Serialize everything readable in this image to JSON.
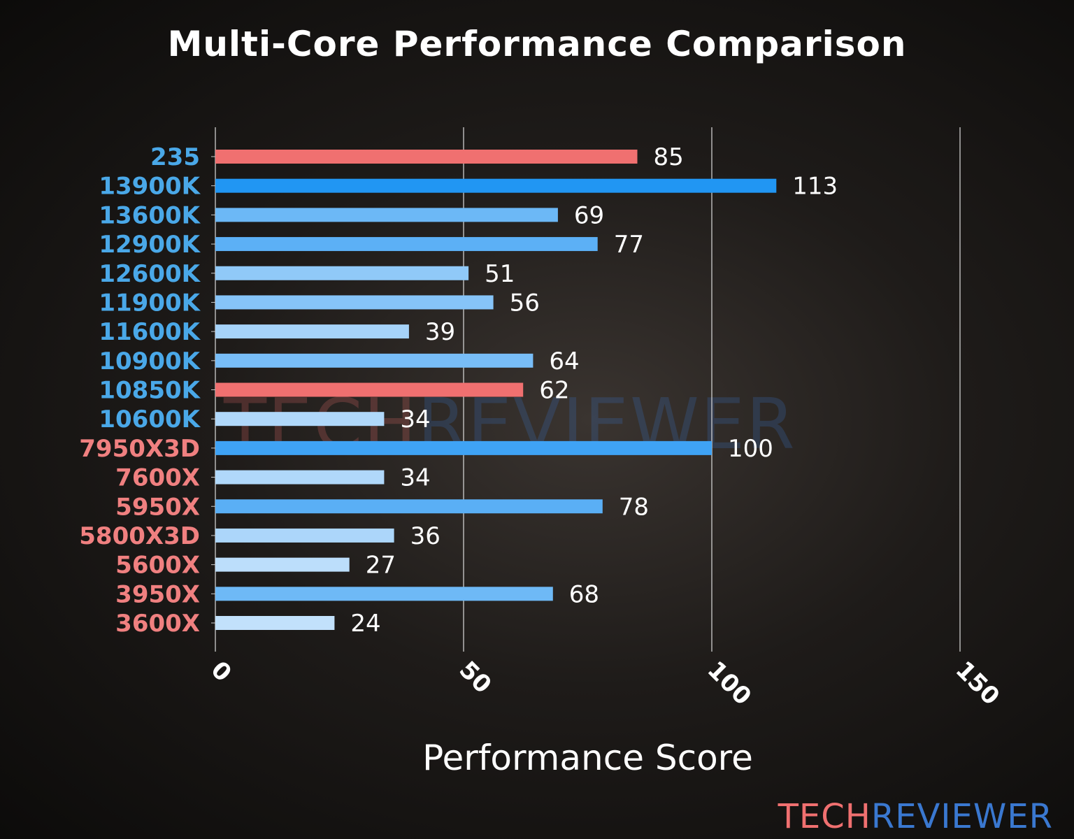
{
  "chart_data": {
    "type": "bar",
    "orientation": "horizontal",
    "title": "Multi-Core Performance Comparison",
    "xlabel": "Performance Score",
    "ylabel": "",
    "xlim": [
      0,
      150
    ],
    "xticks": [
      0,
      50,
      100,
      150
    ],
    "grid": "vertical",
    "categories": [
      "235",
      "13900K",
      "13600K",
      "12900K",
      "12600K",
      "11900K",
      "11600K",
      "10900K",
      "10850K",
      "10600K",
      "7950X3D",
      "7600X",
      "5950X",
      "5800X3D",
      "5600X",
      "3950X",
      "3600X"
    ],
    "values": [
      85,
      113,
      69,
      77,
      51,
      56,
      39,
      64,
      62,
      34,
      100,
      34,
      78,
      36,
      27,
      68,
      24
    ],
    "bar_colors": [
      "#f07070",
      "#2196f3",
      "#6cb8f6",
      "#5cb0f6",
      "#90c9f8",
      "#86c4f8",
      "#a6d3f9",
      "#78bdf7",
      "#f07070",
      "#b0d8fa",
      "#3fa3f5",
      "#b0d8fa",
      "#5aaff5",
      "#acd6fa",
      "#bcdefb",
      "#6eb9f6",
      "#c2e1fb"
    ],
    "label_colors": [
      "#4aa8e8",
      "#4aa8e8",
      "#4aa8e8",
      "#4aa8e8",
      "#4aa8e8",
      "#4aa8e8",
      "#4aa8e8",
      "#4aa8e8",
      "#4aa8e8",
      "#4aa8e8",
      "#f08080",
      "#f08080",
      "#f08080",
      "#f08080",
      "#f08080",
      "#f08080",
      "#f08080"
    ]
  },
  "watermark": {
    "part1": "TECH",
    "part2": "REVIEWER",
    "color1": "#f07070",
    "color2": "#3a78d0"
  }
}
